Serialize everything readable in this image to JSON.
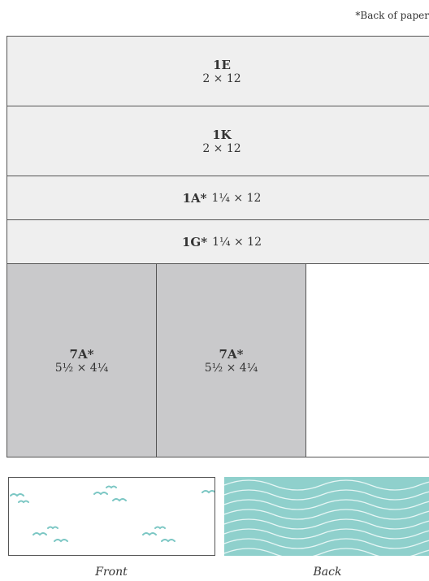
{
  "note": "*Back of paper",
  "pieces": [
    {
      "code": "1E",
      "size": "2 × 12"
    },
    {
      "code": "1K",
      "size": "2 × 12"
    },
    {
      "code": "1A*",
      "size": "1¼ × 12"
    },
    {
      "code": "1G*",
      "size": "1¼ × 12"
    },
    {
      "code": "7A*",
      "size": "5½ × 4¼"
    },
    {
      "code": "7A*",
      "size": "5½ × 4¼"
    }
  ],
  "swatches": {
    "front": "Front",
    "back": "Back"
  }
}
